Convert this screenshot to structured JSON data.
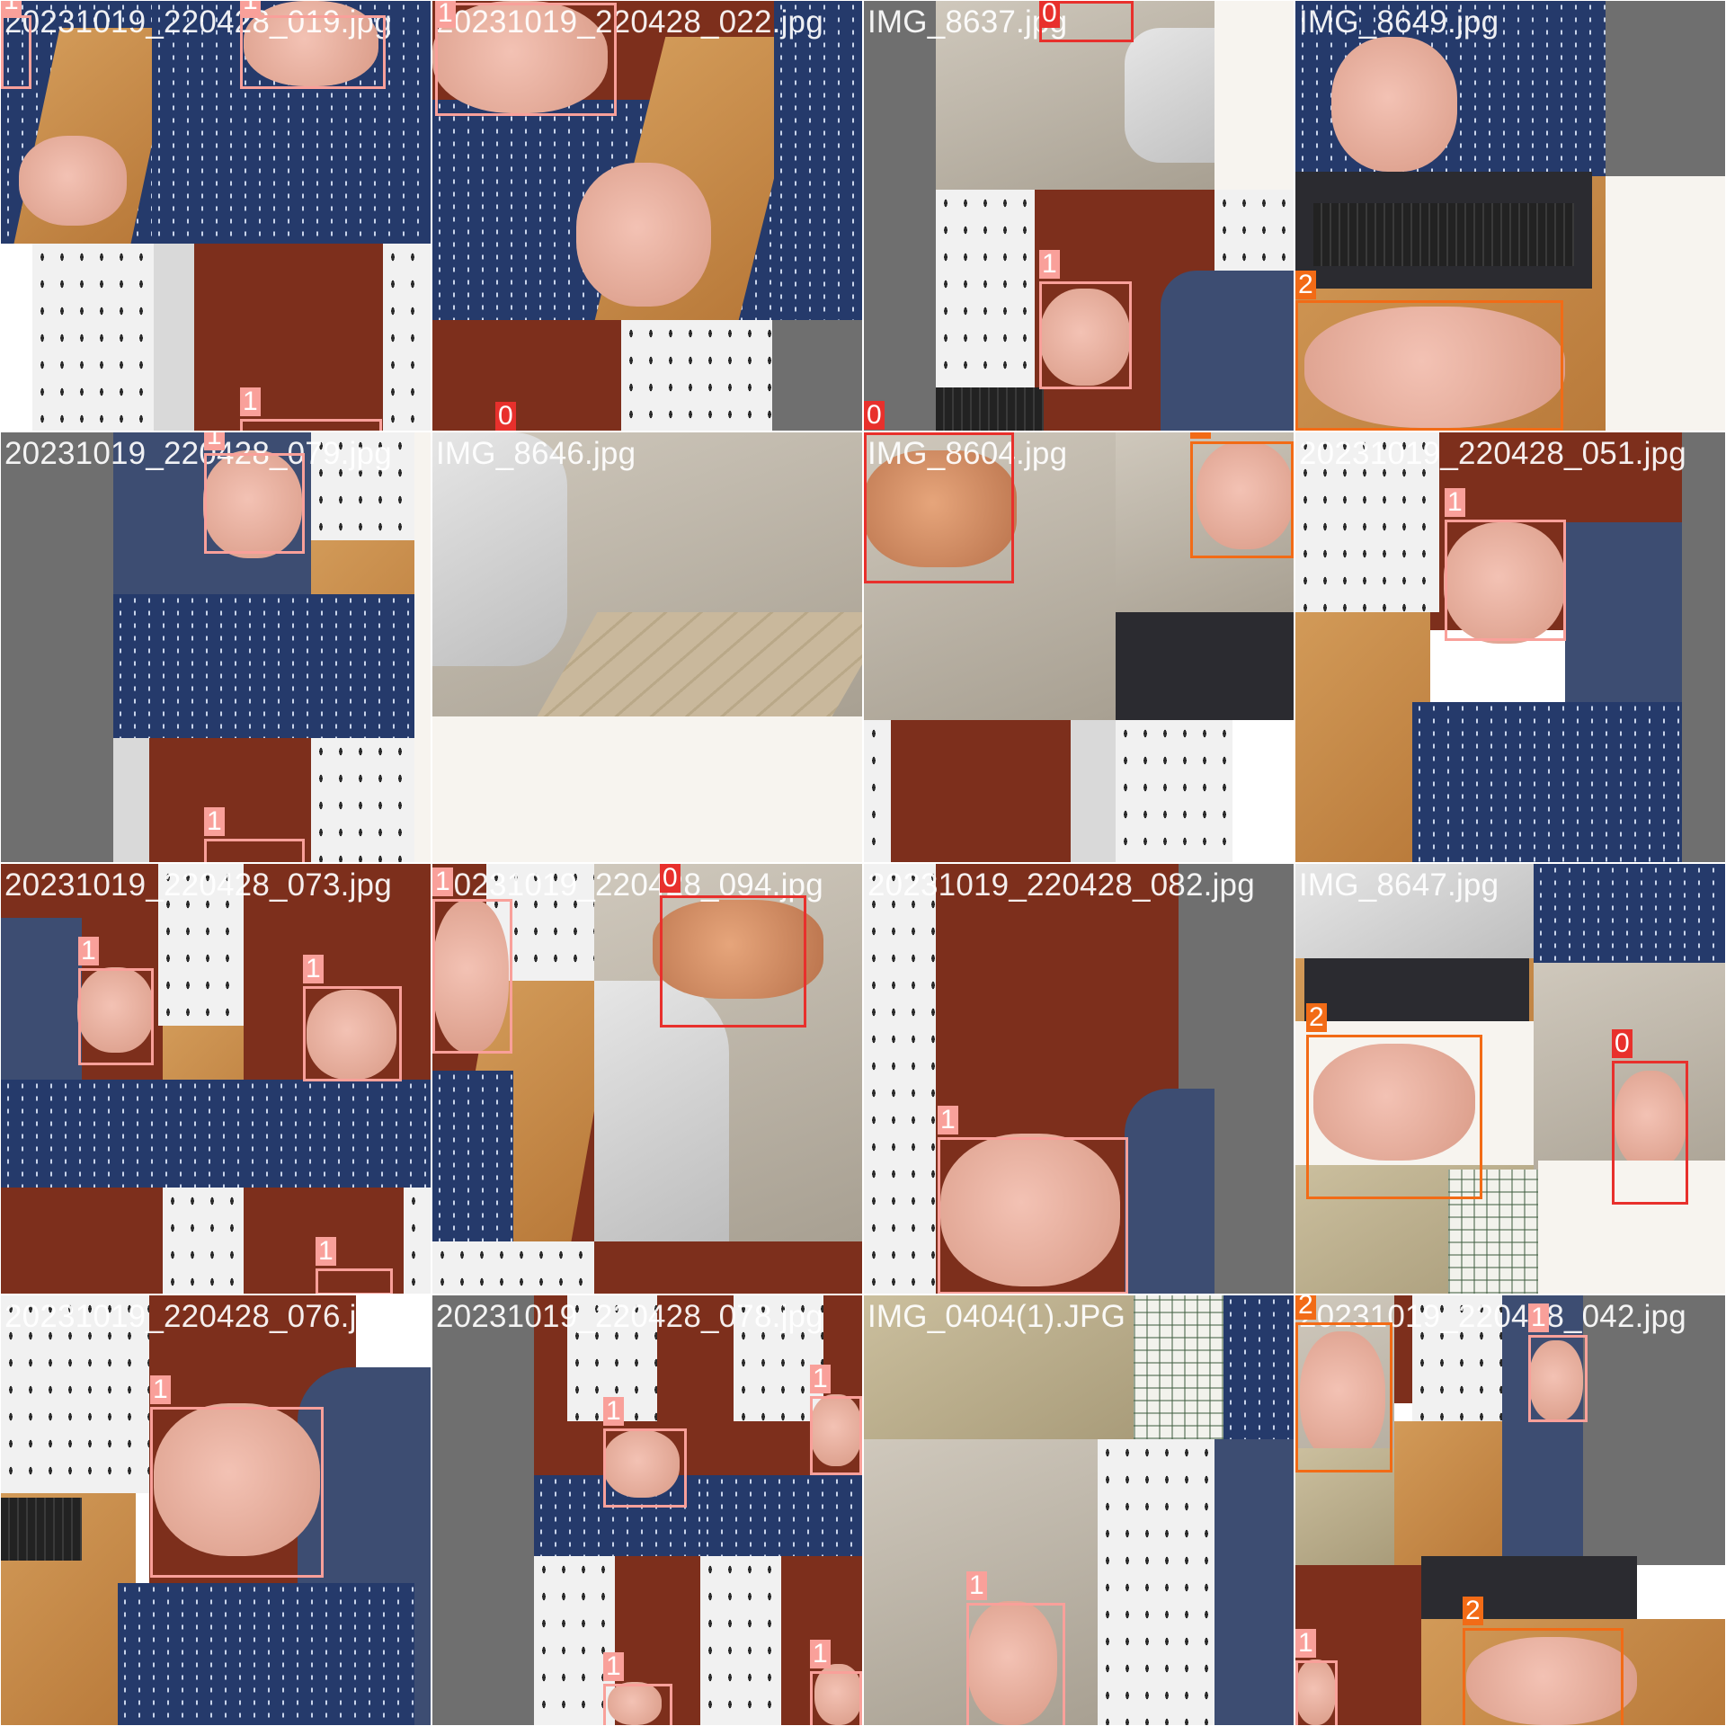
{
  "colors": {
    "class_0": "#e8302c",
    "class_1": "#f9a09a",
    "class_2": "#f26b16"
  },
  "tiles": [
    {
      "label": "20231019_220428_019.jpg",
      "detections": [
        {
          "cls": "1",
          "color": "class_1"
        },
        {
          "cls": "1",
          "color": "class_1"
        },
        {
          "cls": "1",
          "color": "class_1"
        }
      ]
    },
    {
      "label": "20231019_220428_022.jpg",
      "detections": [
        {
          "cls": "1",
          "color": "class_1"
        },
        {
          "cls": "0",
          "color": "class_0"
        }
      ]
    },
    {
      "label": "IMG_8637.jpg",
      "detections": [
        {
          "cls": "0",
          "color": "class_0"
        },
        {
          "cls": "1",
          "color": "class_1"
        },
        {
          "cls": "0",
          "color": "class_0"
        }
      ]
    },
    {
      "label": "IMG_8649.jpg",
      "detections": [
        {
          "cls": "2",
          "color": "class_2"
        }
      ]
    },
    {
      "label": "20231019_220428_079.jpg",
      "detections": [
        {
          "cls": "1",
          "color": "class_1"
        },
        {
          "cls": "1",
          "color": "class_1"
        }
      ]
    },
    {
      "label": "IMG_8646.jpg",
      "detections": []
    },
    {
      "label": "IMG_8604.jpg",
      "detections": [
        {
          "cls": "0",
          "color": "class_0"
        },
        {
          "cls": "2",
          "color": "class_2"
        }
      ]
    },
    {
      "label": "20231019_220428_051.jpg",
      "detections": [
        {
          "cls": "1",
          "color": "class_1"
        }
      ]
    },
    {
      "label": "20231019_220428_073.jpg",
      "detections": [
        {
          "cls": "1",
          "color": "class_1"
        },
        {
          "cls": "1",
          "color": "class_1"
        },
        {
          "cls": "1",
          "color": "class_1"
        }
      ]
    },
    {
      "label": "20231019_220428_094.jpg",
      "detections": [
        {
          "cls": "1",
          "color": "class_1"
        },
        {
          "cls": "0",
          "color": "class_0"
        }
      ]
    },
    {
      "label": "20231019_220428_082.jpg",
      "detections": [
        {
          "cls": "1",
          "color": "class_1"
        }
      ]
    },
    {
      "label": "IMG_8647.jpg",
      "detections": [
        {
          "cls": "2",
          "color": "class_2"
        },
        {
          "cls": "0",
          "color": "class_0"
        }
      ]
    },
    {
      "label": "20231019_220428_076.jpg",
      "detections": [
        {
          "cls": "1",
          "color": "class_1"
        }
      ]
    },
    {
      "label": "20231019_220428_078.jpg",
      "detections": [
        {
          "cls": "1",
          "color": "class_1"
        },
        {
          "cls": "1",
          "color": "class_1"
        },
        {
          "cls": "1",
          "color": "class_1"
        },
        {
          "cls": "1",
          "color": "class_1"
        }
      ]
    },
    {
      "label": "IMG_0404(1).JPG",
      "detections": [
        {
          "cls": "1",
          "color": "class_1"
        }
      ]
    },
    {
      "label": "20231019_220428_042.jpg",
      "detections": [
        {
          "cls": "2",
          "color": "class_2"
        },
        {
          "cls": "1",
          "color": "class_1"
        },
        {
          "cls": "2",
          "color": "class_2"
        },
        {
          "cls": "1",
          "color": "class_1"
        }
      ]
    }
  ]
}
